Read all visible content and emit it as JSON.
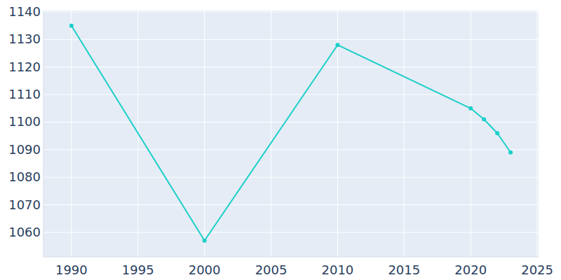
{
  "chart_data": {
    "type": "line",
    "x": [
      1990,
      2000,
      2010,
      2020,
      2021,
      2022,
      2023
    ],
    "values": [
      1135,
      1057,
      1128,
      1105,
      1101,
      1096,
      1089
    ],
    "color": "#1ccfc9",
    "marker": "circle",
    "xlim": [
      1987.9,
      2025.1
    ],
    "xticks": [
      1990,
      1995,
      2000,
      2005,
      2010,
      2015,
      2020,
      2025
    ],
    "ylim": [
      1051.1,
      1140.5
    ],
    "yticks": [
      1060,
      1070,
      1080,
      1090,
      1100,
      1110,
      1120,
      1130,
      1140
    ],
    "grid": true
  }
}
